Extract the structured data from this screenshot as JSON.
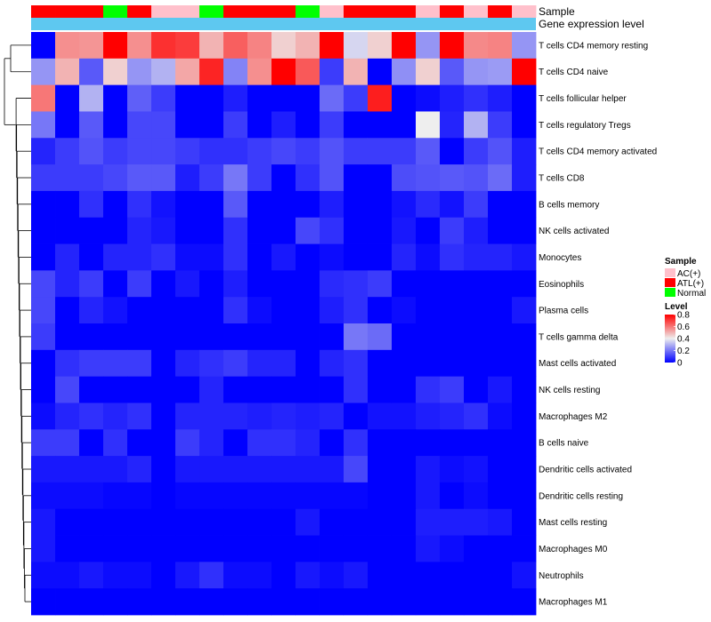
{
  "chart_data": {
    "type": "heatmap",
    "title": "",
    "annotation_tracks": [
      "Sample",
      "Gene expression level"
    ],
    "samples": [
      "ATL(+)",
      "ATL(+)",
      "ATL(+)",
      "Normal",
      "ATL(+)",
      "AC(+)",
      "AC(+)",
      "Normal",
      "ATL(+)",
      "ATL(+)",
      "ATL(+)",
      "Normal",
      "AC(+)",
      "ATL(+)",
      "ATL(+)",
      "ATL(+)",
      "AC(+)",
      "ATL(+)",
      "AC(+)",
      "ATL(+)",
      "AC(+)"
    ],
    "rows": [
      "T cells CD4 memory resting",
      "T cells CD4 naive",
      "T cells follicular helper",
      "T cells regulatory  Tregs",
      "T cells CD4 memory activated",
      "T cells CD8",
      "B cells memory",
      "NK cells activated",
      "Monocytes",
      "Eosinophils",
      "Plasma cells",
      "T cells gamma delta",
      "Mast cells activated",
      "NK cells resting",
      "Macrophages M2",
      "B cells naive",
      "Dendritic cells activated",
      "Dendritic cells resting",
      "Mast cells resting",
      "Macrophages M0",
      "Neutrophils",
      "Macrophages M1"
    ],
    "values": [
      [
        0.0,
        0.56,
        0.55,
        0.8,
        0.56,
        0.72,
        0.7,
        0.5,
        0.64,
        0.58,
        0.45,
        0.5,
        0.8,
        0.36,
        0.45,
        0.8,
        0.25,
        0.8,
        0.57,
        0.58,
        0.25
      ],
      [
        0.25,
        0.5,
        0.15,
        0.45,
        0.25,
        0.3,
        0.52,
        0.74,
        0.22,
        0.56,
        0.8,
        0.65,
        0.1,
        0.5,
        0.0,
        0.24,
        0.45,
        0.15,
        0.25,
        0.26,
        0.8
      ],
      [
        0.6,
        0.0,
        0.3,
        0.0,
        0.16,
        0.1,
        0.0,
        0.0,
        0.05,
        0.0,
        0.0,
        0.0,
        0.18,
        0.1,
        0.75,
        0.0,
        0.02,
        0.05,
        0.08,
        0.05,
        0.0
      ],
      [
        0.2,
        0.0,
        0.15,
        0.0,
        0.12,
        0.12,
        0.0,
        0.0,
        0.1,
        0.0,
        0.05,
        0.0,
        0.1,
        0.0,
        0.0,
        0.0,
        0.4,
        0.06,
        0.3,
        0.1,
        0.0
      ],
      [
        0.06,
        0.1,
        0.14,
        0.1,
        0.12,
        0.12,
        0.1,
        0.08,
        0.08,
        0.1,
        0.12,
        0.1,
        0.14,
        0.1,
        0.1,
        0.1,
        0.15,
        0.0,
        0.1,
        0.14,
        0.05
      ],
      [
        0.1,
        0.1,
        0.1,
        0.12,
        0.15,
        0.15,
        0.05,
        0.1,
        0.2,
        0.1,
        0.0,
        0.08,
        0.14,
        0.0,
        0.0,
        0.13,
        0.14,
        0.15,
        0.14,
        0.18,
        0.05
      ],
      [
        0.0,
        0.0,
        0.08,
        0.0,
        0.08,
        0.03,
        0.0,
        0.0,
        0.15,
        0.0,
        0.0,
        0.0,
        0.05,
        0.0,
        0.0,
        0.03,
        0.07,
        0.03,
        0.1,
        0.0,
        0.0
      ],
      [
        0.0,
        0.0,
        0.0,
        0.0,
        0.06,
        0.04,
        0.0,
        0.0,
        0.08,
        0.0,
        0.0,
        0.12,
        0.08,
        0.0,
        0.0,
        0.04,
        0.0,
        0.1,
        0.05,
        0.0,
        0.0
      ],
      [
        0.0,
        0.06,
        0.0,
        0.06,
        0.06,
        0.08,
        0.02,
        0.02,
        0.08,
        0.0,
        0.04,
        0.0,
        0.02,
        0.0,
        0.0,
        0.06,
        0.02,
        0.08,
        0.06,
        0.06,
        0.04
      ],
      [
        0.12,
        0.06,
        0.1,
        0.0,
        0.1,
        0.0,
        0.04,
        0.0,
        0.05,
        0.0,
        0.0,
        0.0,
        0.07,
        0.08,
        0.1,
        0.0,
        0.0,
        0.0,
        0.0,
        0.0,
        0.0
      ],
      [
        0.12,
        0.0,
        0.06,
        0.03,
        0.0,
        0.0,
        0.0,
        0.0,
        0.08,
        0.02,
        0.0,
        0.0,
        0.05,
        0.08,
        0.0,
        0.02,
        0.0,
        0.0,
        0.0,
        0.0,
        0.04
      ],
      [
        0.1,
        0.0,
        0.0,
        0.0,
        0.0,
        0.0,
        0.0,
        0.0,
        0.0,
        0.0,
        0.0,
        0.0,
        0.0,
        0.2,
        0.18,
        0.0,
        0.0,
        0.0,
        0.0,
        0.0,
        0.0
      ],
      [
        0.0,
        0.08,
        0.1,
        0.1,
        0.1,
        0.0,
        0.06,
        0.08,
        0.1,
        0.06,
        0.06,
        0.0,
        0.06,
        0.08,
        0.0,
        0.0,
        0.0,
        0.0,
        0.0,
        0.0,
        0.0
      ],
      [
        0.0,
        0.12,
        0.0,
        0.0,
        0.0,
        0.0,
        0.0,
        0.06,
        0.0,
        0.0,
        0.0,
        0.0,
        0.0,
        0.08,
        0.0,
        0.0,
        0.08,
        0.1,
        0.0,
        0.04,
        0.0
      ],
      [
        0.02,
        0.06,
        0.08,
        0.06,
        0.08,
        0.0,
        0.06,
        0.06,
        0.06,
        0.05,
        0.06,
        0.05,
        0.06,
        0.0,
        0.03,
        0.03,
        0.05,
        0.06,
        0.08,
        0.02,
        0.0
      ],
      [
        0.1,
        0.1,
        0.0,
        0.08,
        0.0,
        0.0,
        0.1,
        0.06,
        0.0,
        0.08,
        0.08,
        0.06,
        0.0,
        0.08,
        0.0,
        0.0,
        0.0,
        0.0,
        0.0,
        0.0,
        0.0
      ],
      [
        0.04,
        0.04,
        0.04,
        0.04,
        0.06,
        0.0,
        0.04,
        0.04,
        0.04,
        0.04,
        0.04,
        0.04,
        0.04,
        0.12,
        0.0,
        0.0,
        0.04,
        0.02,
        0.03,
        0.0,
        0.0
      ],
      [
        0.02,
        0.02,
        0.02,
        0.01,
        0.01,
        0.0,
        0.01,
        0.01,
        0.01,
        0.01,
        0.01,
        0.01,
        0.01,
        0.01,
        0.0,
        0.0,
        0.04,
        0.0,
        0.02,
        0.0,
        0.0
      ],
      [
        0.04,
        0.0,
        0.0,
        0.0,
        0.0,
        0.0,
        0.0,
        0.0,
        0.0,
        0.0,
        0.0,
        0.04,
        0.0,
        0.0,
        0.0,
        0.0,
        0.05,
        0.05,
        0.05,
        0.04,
        0.0
      ],
      [
        0.04,
        0.0,
        0.0,
        0.0,
        0.0,
        0.0,
        0.0,
        0.0,
        0.0,
        0.0,
        0.0,
        0.0,
        0.0,
        0.0,
        0.0,
        0.0,
        0.04,
        0.02,
        0.0,
        0.0,
        0.0
      ],
      [
        0.02,
        0.02,
        0.04,
        0.02,
        0.02,
        0.0,
        0.04,
        0.08,
        0.02,
        0.02,
        0.0,
        0.04,
        0.02,
        0.04,
        0.0,
        0.0,
        0.0,
        0.0,
        0.0,
        0.0,
        0.03
      ],
      [
        0.0,
        0.0,
        0.0,
        0.0,
        0.0,
        0.0,
        0.0,
        0.0,
        0.0,
        0.0,
        0.0,
        0.0,
        0.0,
        0.0,
        0.0,
        0.0,
        0.0,
        0.0,
        0.0,
        0.0,
        0.0
      ]
    ],
    "color_range": [
      0,
      0.8
    ],
    "legend": {
      "sample_title": "Sample",
      "sample_entries": [
        {
          "label": "AC(+)",
          "color": "#ffc0cb"
        },
        {
          "label": "ATL(+)",
          "color": "#ff0000"
        },
        {
          "label": "Normal",
          "color": "#00ff00"
        }
      ],
      "level_title": "Level",
      "level_ticks": [
        "0.8",
        "0.6",
        "0.4",
        "0.2",
        "0"
      ],
      "level_tick_values": [
        0.8,
        0.6,
        0.4,
        0.2,
        0
      ]
    },
    "gene_expression_color": "#5ec8f0",
    "low_color": "#0000ff",
    "mid_color": "#eeeeee",
    "high_color": "#ff0000"
  }
}
